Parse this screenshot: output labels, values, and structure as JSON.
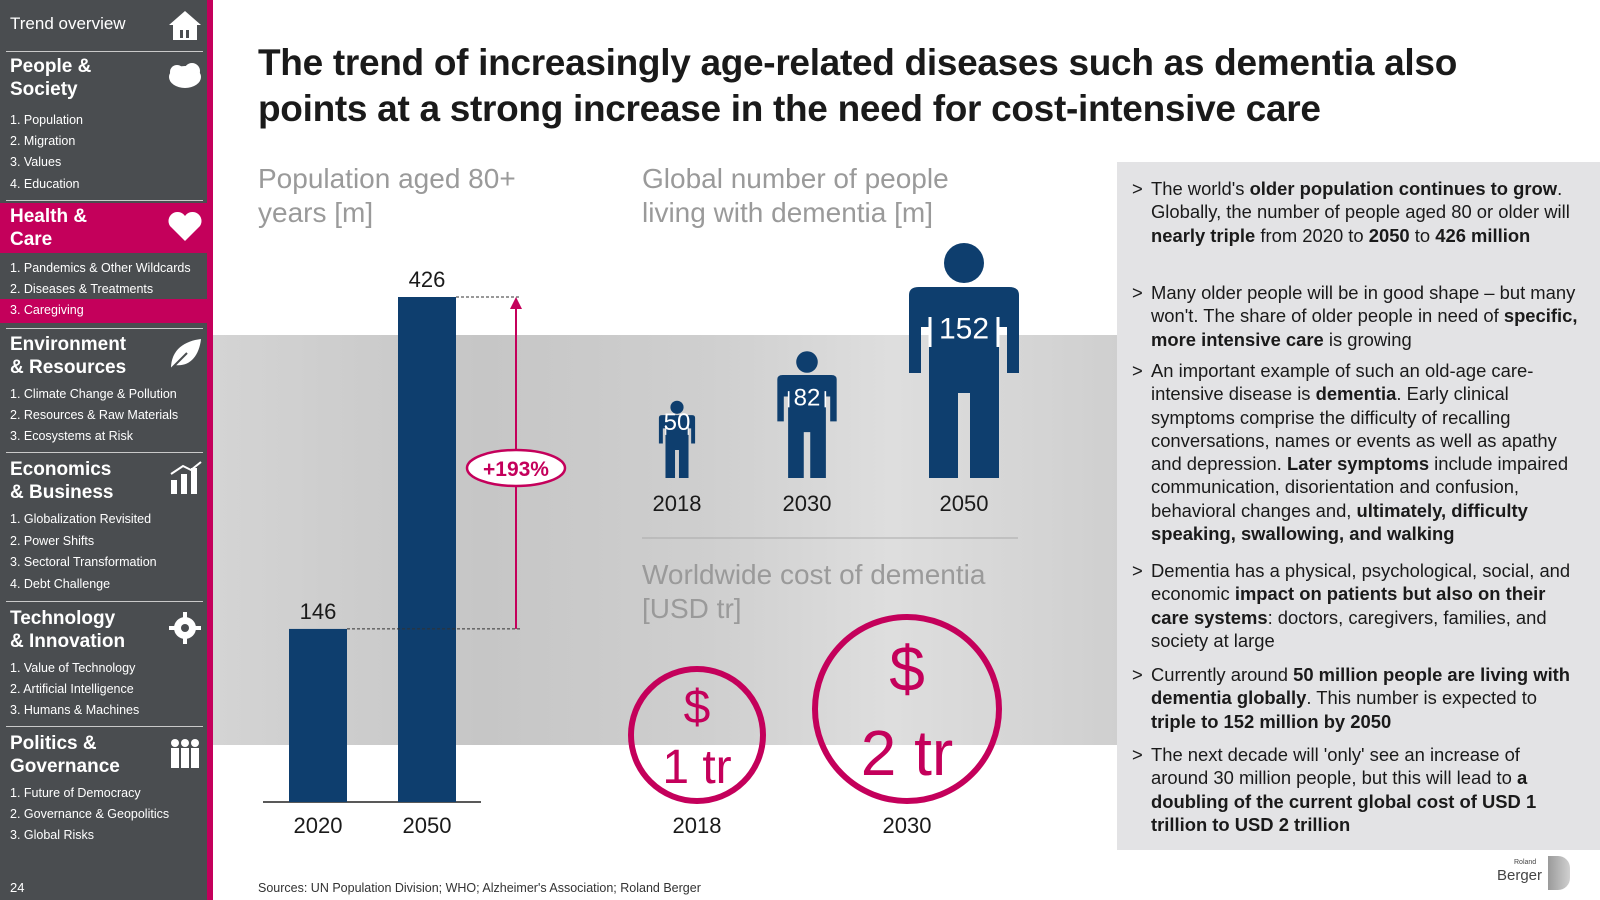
{
  "sidebar": {
    "trend_overview": "Trend overview",
    "sections": [
      {
        "heading": "People &\nSociety",
        "items": [
          "1. Population",
          "2. Migration",
          "3. Values",
          "4. Education"
        ]
      },
      {
        "heading": "Health &\nCare",
        "items": [
          "1. Pandemics & Other Wildcards",
          "2. Diseases & Treatments",
          "3. Caregiving"
        ],
        "active_item": "3. Caregiving"
      },
      {
        "heading": "Environment\n& Resources",
        "items": [
          "1. Climate Change & Pollution",
          "2. Resources & Raw Materials",
          "3. Ecosystems at Risk"
        ]
      },
      {
        "heading": "Economics\n& Business",
        "items": [
          "1. Globalization Revisited",
          "2. Power Shifts",
          "3. Sectoral Transformation",
          "4. Debt Challenge"
        ]
      },
      {
        "heading": "Technology\n& Innovation",
        "items": [
          "1. Value of Technology",
          "2. Artificial Intelligence",
          "3. Humans & Machines"
        ]
      },
      {
        "heading": "Politics &\nGovernance",
        "items": [
          "1. Future of Democracy",
          "2. Governance & Geopolitics",
          "3. Global Risks"
        ]
      }
    ],
    "page_number": "24"
  },
  "title": "The trend of increasingly age-related diseases such as dementia also points at a strong increase in the need for cost-intensive care",
  "colors": {
    "navy": "#0e3e6e",
    "magenta": "#c4005b",
    "sidebar_bg": "#4a4d50",
    "panel_bg": "#e3e3e5"
  },
  "chart_data": [
    {
      "type": "bar",
      "title": "Population aged 80+ years [m]",
      "categories": [
        "2020",
        "2050"
      ],
      "values": [
        146,
        426
      ],
      "ylim": [
        0,
        426
      ],
      "annotation": "+193%"
    },
    {
      "type": "bar",
      "title": "Global number of people living with dementia [m]",
      "categories": [
        "2018",
        "2030",
        "2050"
      ],
      "values": [
        50,
        82,
        152
      ]
    },
    {
      "type": "bar",
      "title": "Worldwide cost of dementia [USD tr]",
      "categories": [
        "2018",
        "2030"
      ],
      "values": [
        1,
        2
      ],
      "value_labels": [
        "1 tr",
        "2 tr"
      ],
      "symbol": "$"
    }
  ],
  "bullets": [
    "The world's <b>older population continues to grow</b>. Globally, the number of people aged 80 or older will <b>nearly triple</b> from 2020 to <b>2050</b> to <b>426 million</b>",
    "Many older people will be in good shape – but many won't. The share of older people in need of <b>specific, more intensive care</b> is growing",
    "An important example of such an old-age care-intensive disease is <b>dementia</b>. Early clinical symptoms comprise the difficulty of recalling conversations, names or events as well as apathy and depression. <b>Later symptoms</b> include impaired communication, disorientation and confusion, behavioral changes and, <b>ultimately, difficulty speaking, swallowing, and walking</b>",
    "Dementia has a physical, psychological, social, and economic <b>impact on patients but also on their care systems</b>: doctors, caregivers, families, and society at large",
    "Currently around <b>50 million people are living with dementia globally</b>. This number is expected to <b>triple to 152 million by 2050</b>",
    "The next decade will 'only' see an increase of around 30 million people, but this will lead to <b>a doubling of the current global cost of USD 1 trillion to USD 2 trillion</b>"
  ],
  "bullet_marker": ">",
  "sources": "Sources: UN Population Division; WHO; Alzheimer's Association; Roland Berger",
  "logo": {
    "line1": "Roland",
    "line2": "Berger"
  }
}
